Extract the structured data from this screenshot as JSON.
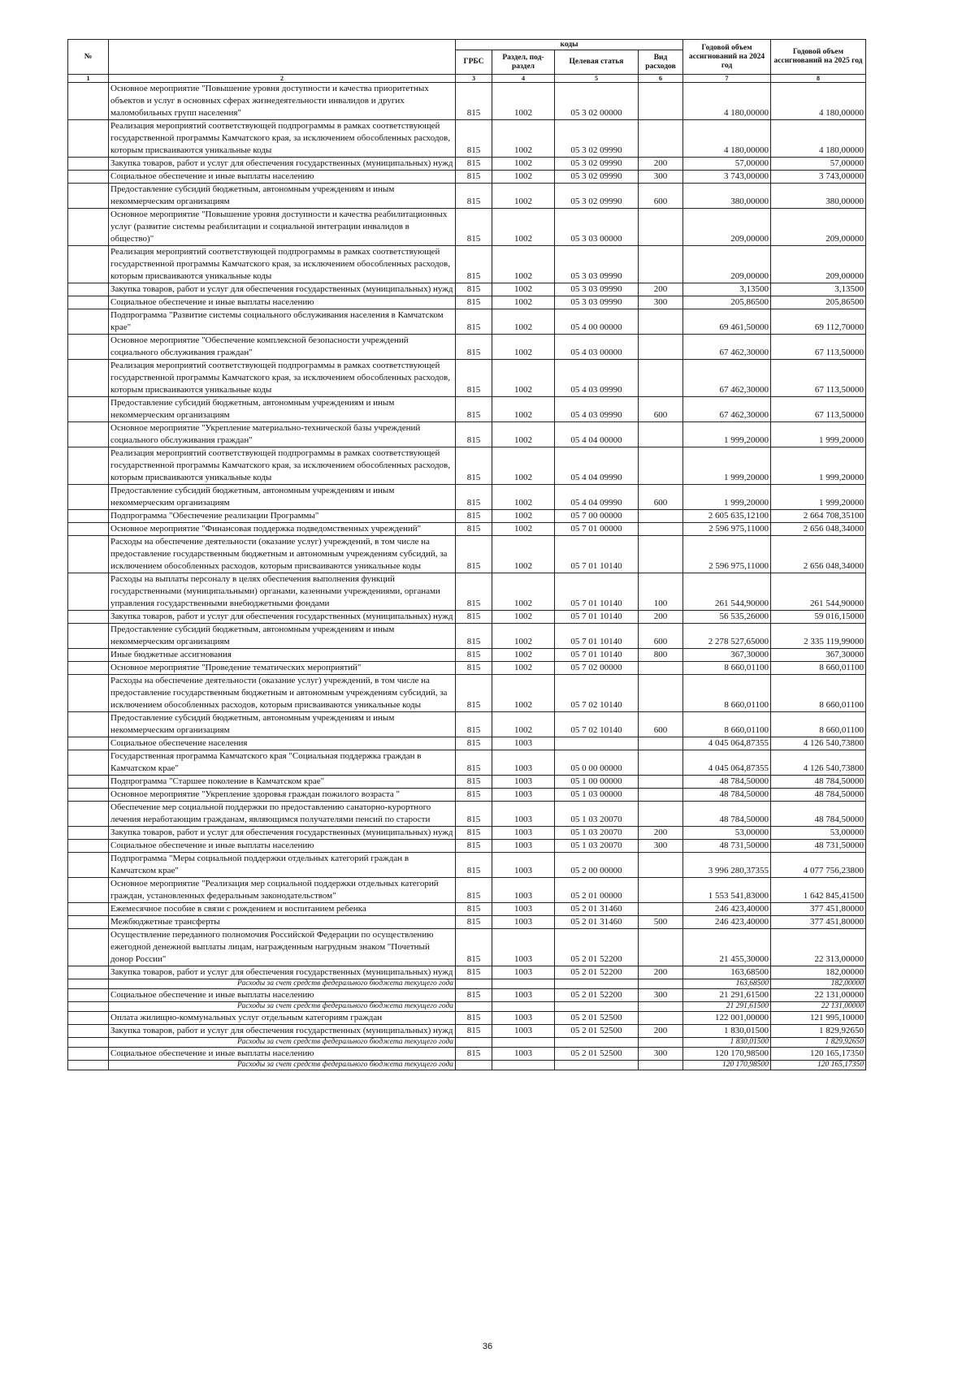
{
  "header": {
    "no": "№",
    "codes": "коды",
    "grbs": "ГРБС",
    "section": "Раздел, под-раздел",
    "target": "Целевая статья",
    "type": "Вид расходов",
    "y2024": "Годовой объем ассигнований на 2024 год",
    "y2025": "Годовой объем ассигнований на 2025 год",
    "numbers": [
      "1",
      "2",
      "3",
      "4",
      "5",
      "6",
      "7",
      "8"
    ]
  },
  "rows": [
    {
      "name": "Основное мероприятие \"Повышение уровня доступности и качества приоритетных объектов и услуг в основных сферах жизнедеятельности инвалидов и других маломобильных групп населения\"",
      "grbs": "815",
      "section": "1002",
      "target": "05 3 02 00000",
      "y2024": "4 180,00000",
      "y2025": "4 180,00000"
    },
    {
      "name": "Реализация мероприятий соответствующей подпрограммы в рамках соответствующей государственной программы Камчатского края, за исключением обособленных расходов, которым присваиваются уникальные коды",
      "grbs": "815",
      "section": "1002",
      "target": "05 3 02 09990",
      "y2024": "4 180,00000",
      "y2025": "4 180,00000"
    },
    {
      "name": "Закупка товаров, работ и услуг для обеспечения государственных (муниципальных) нужд",
      "grbs": "815",
      "section": "1002",
      "target": "05 3 02 09990",
      "type": "200",
      "y2024": "57,00000",
      "y2025": "57,00000"
    },
    {
      "name": "Социальное обеспечение и иные выплаты населению",
      "grbs": "815",
      "section": "1002",
      "target": "05 3 02 09990",
      "type": "300",
      "y2024": "3 743,00000",
      "y2025": "3 743,00000"
    },
    {
      "name": "Предоставление субсидий бюджетным, автономным учреждениям и иным некоммерческим организациям",
      "grbs": "815",
      "section": "1002",
      "target": "05 3 02 09990",
      "type": "600",
      "y2024": "380,00000",
      "y2025": "380,00000"
    },
    {
      "name": "Основное мероприятие \"Повышение уровня доступности и качества реабилитационных услуг (развитие системы реабилитации и социальной интеграции инвалидов в общество)\"",
      "grbs": "815",
      "section": "1002",
      "target": "05 3 03 00000",
      "y2024": "209,00000",
      "y2025": "209,00000"
    },
    {
      "name": "Реализация мероприятий соответствующей подпрограммы в рамках соответствующей государственной программы Камчатского края, за исключением обособленных расходов, которым присваиваются уникальные коды",
      "grbs": "815",
      "section": "1002",
      "target": "05 3 03 09990",
      "y2024": "209,00000",
      "y2025": "209,00000"
    },
    {
      "name": "Закупка товаров, работ и услуг для обеспечения государственных (муниципальных) нужд",
      "grbs": "815",
      "section": "1002",
      "target": "05 3 03 09990",
      "type": "200",
      "y2024": "3,13500",
      "y2025": "3,13500"
    },
    {
      "name": "Социальное обеспечение и иные выплаты населению",
      "grbs": "815",
      "section": "1002",
      "target": "05 3 03 09990",
      "type": "300",
      "y2024": "205,86500",
      "y2025": "205,86500"
    },
    {
      "name": "Подпрограмма \"Развитие системы социального обслуживания населения в Камчатском крае\"",
      "grbs": "815",
      "section": "1002",
      "target": "05 4 00 00000",
      "y2024": "69 461,50000",
      "y2025": "69 112,70000"
    },
    {
      "name": "Основное мероприятие \"Обеспечение комплексной безопасности учреждений социального обслуживания граждан\"",
      "grbs": "815",
      "section": "1002",
      "target": "05 4 03 00000",
      "y2024": "67 462,30000",
      "y2025": "67 113,50000"
    },
    {
      "name": "Реализация мероприятий соответствующей подпрограммы в рамках соответствующей государственной программы Камчатского края, за исключением обособленных расходов, которым присваиваются уникальные коды",
      "grbs": "815",
      "section": "1002",
      "target": "05 4 03 09990",
      "y2024": "67 462,30000",
      "y2025": "67 113,50000"
    },
    {
      "name": "Предоставление субсидий бюджетным, автономным учреждениям и иным некоммерческим организациям",
      "grbs": "815",
      "section": "1002",
      "target": "05 4 03 09990",
      "type": "600",
      "y2024": "67 462,30000",
      "y2025": "67 113,50000"
    },
    {
      "name": "Основное мероприятие \"Укрепление материально-технической базы учреждений социального обслуживания граждан\"",
      "grbs": "815",
      "section": "1002",
      "target": "05 4 04 00000",
      "y2024": "1 999,20000",
      "y2025": "1 999,20000"
    },
    {
      "name": "Реализация мероприятий соответствующей подпрограммы в рамках соответствующей государственной программы Камчатского края, за исключением обособленных расходов, которым присваиваются уникальные коды",
      "grbs": "815",
      "section": "1002",
      "target": "05 4 04 09990",
      "y2024": "1 999,20000",
      "y2025": "1 999,20000"
    },
    {
      "name": "Предоставление субсидий бюджетным, автономным учреждениям и иным некоммерческим организациям",
      "grbs": "815",
      "section": "1002",
      "target": "05 4 04 09990",
      "type": "600",
      "y2024": "1 999,20000",
      "y2025": "1 999,20000"
    },
    {
      "name": "Подпрограмма \"Обеспечение реализации Программы\"",
      "grbs": "815",
      "section": "1002",
      "target": "05 7 00 00000",
      "y2024": "2 605 635,12100",
      "y2025": "2 664 708,35100"
    },
    {
      "name": "Основное мероприятие \"Финансовая поддержка подведомственных учреждений\"",
      "grbs": "815",
      "section": "1002",
      "target": "05 7 01 00000",
      "y2024": "2 596 975,11000",
      "y2025": "2 656 048,34000"
    },
    {
      "name": "Расходы на обеспечение деятельности (оказание услуг) учреждений, в том числе на предоставление государственным бюджетным и автономным учреждениям субсидий, за исключением обособленных расходов, которым присваиваются уникальные коды",
      "grbs": "815",
      "section": "1002",
      "target": "05 7 01 10140",
      "y2024": "2 596 975,11000",
      "y2025": "2 656 048,34000"
    },
    {
      "name": "Расходы на выплаты персоналу в целях обеспечения выполнения функций государственными (муниципальными) органами, казенными учреждениями, органами управления государственными внебюджетными фондами",
      "grbs": "815",
      "section": "1002",
      "target": "05 7 01 10140",
      "type": "100",
      "y2024": "261 544,90000",
      "y2025": "261 544,90000"
    },
    {
      "name": "Закупка товаров, работ и услуг для обеспечения государственных (муниципальных) нужд",
      "grbs": "815",
      "section": "1002",
      "target": "05 7 01 10140",
      "type": "200",
      "y2024": "56 535,26000",
      "y2025": "59 016,15000"
    },
    {
      "name": "Предоставление субсидий бюджетным, автономным учреждениям и иным некоммерческим организациям",
      "grbs": "815",
      "section": "1002",
      "target": "05 7 01 10140",
      "type": "600",
      "y2024": "2 278 527,65000",
      "y2025": "2 335 119,99000"
    },
    {
      "name": "Иные бюджетные ассигнования",
      "grbs": "815",
      "section": "1002",
      "target": "05 7 01 10140",
      "type": "800",
      "y2024": "367,30000",
      "y2025": "367,30000"
    },
    {
      "name": "Основное мероприятие \"Проведение тематических мероприятий\"",
      "grbs": "815",
      "section": "1002",
      "target": "05 7 02 00000",
      "y2024": "8 660,01100",
      "y2025": "8 660,01100"
    },
    {
      "name": "Расходы на обеспечение деятельности (оказание услуг) учреждений, в том числе на предоставление государственным бюджетным и автономным учреждениям субсидий, за исключением обособленных расходов, которым присваиваются уникальные коды",
      "grbs": "815",
      "section": "1002",
      "target": "05 7 02 10140",
      "y2024": "8 660,01100",
      "y2025": "8 660,01100"
    },
    {
      "name": "Предоставление субсидий бюджетным, автономным учреждениям и иным некоммерческим организациям",
      "grbs": "815",
      "section": "1002",
      "target": "05 7 02 10140",
      "type": "600",
      "y2024": "8 660,01100",
      "y2025": "8 660,01100"
    },
    {
      "name": "Социальное обеспечение населения",
      "grbs": "815",
      "section": "1003",
      "y2024": "4 045 064,87355",
      "y2025": "4 126 540,73800"
    },
    {
      "name": "Государственная программа Камчатского края \"Социальная поддержка граждан в Камчатском крае\"",
      "grbs": "815",
      "section": "1003",
      "target": "05 0 00 00000",
      "y2024": "4 045 064,87355",
      "y2025": "4 126 540,73800"
    },
    {
      "name": "Подпрограмма \"Старшее поколение в Камчатском крае\"",
      "grbs": "815",
      "section": "1003",
      "target": "05 1 00 00000",
      "y2024": "48 784,50000",
      "y2025": "48 784,50000"
    },
    {
      "name": "Основное мероприятие \"Укрепление здоровья граждан пожилого возраста \"",
      "grbs": "815",
      "section": "1003",
      "target": "05 1 03 00000",
      "y2024": "48 784,50000",
      "y2025": "48 784,50000"
    },
    {
      "name": "Обеспечение мер социальной поддержки по предоставлению санаторно-курортного лечения неработающим гражданам, являющимся получателями пенсий по старости",
      "grbs": "815",
      "section": "1003",
      "target": "05 1 03 20070",
      "y2024": "48 784,50000",
      "y2025": "48 784,50000"
    },
    {
      "name": "Закупка товаров, работ и услуг для обеспечения государственных (муниципальных) нужд",
      "grbs": "815",
      "section": "1003",
      "target": "05 1 03 20070",
      "type": "200",
      "y2024": "53,00000",
      "y2025": "53,00000"
    },
    {
      "name": "Социальное обеспечение и иные выплаты населению",
      "grbs": "815",
      "section": "1003",
      "target": "05 1 03 20070",
      "type": "300",
      "y2024": "48 731,50000",
      "y2025": "48 731,50000"
    },
    {
      "name": "Подпрограмма \"Меры социальной поддержки отдельных категорий граждан в Камчатском крае\"",
      "grbs": "815",
      "section": "1003",
      "target": "05 2 00 00000",
      "y2024": "3 996 280,37355",
      "y2025": "4 077 756,23800"
    },
    {
      "name": "Основное мероприятие \"Реализация мер социальной поддержки отдельных категорий граждан, установленных федеральным законодательством\"",
      "grbs": "815",
      "section": "1003",
      "target": "05 2 01 00000",
      "y2024": "1 553 541,83000",
      "y2025": "1 642 845,41500"
    },
    {
      "name": "Ежемесячное пособие в связи с рождением и воспитанием ребенка",
      "grbs": "815",
      "section": "1003",
      "target": "05 2 01 31460",
      "y2024": "246 423,40000",
      "y2025": "377 451,80000"
    },
    {
      "name": "Межбюджетные трансферты",
      "grbs": "815",
      "section": "1003",
      "target": "05 2 01 31460",
      "type": "500",
      "y2024": "246 423,40000",
      "y2025": "377 451,80000"
    },
    {
      "name": "Осуществление переданного полномочия Российской Федерации по осуществлению ежегодной денежной выплаты лицам, награжденным нагрудным знаком \"Почетный донор России\"",
      "grbs": "815",
      "section": "1003",
      "target": "05 2 01 52200",
      "y2024": "21 455,30000",
      "y2025": "22 313,00000"
    },
    {
      "name": "Закупка товаров, работ и услуг для обеспечения государственных (муниципальных) нужд",
      "grbs": "815",
      "section": "1003",
      "target": "05 2 01 52200",
      "type": "200",
      "y2024": "163,68500",
      "y2025": "182,00000"
    },
    {
      "note": "Расходы за счет средств федерального бюджета текущего года",
      "y2024": "163,68500",
      "y2025": "182,00000"
    },
    {
      "name": "Социальное обеспечение и иные выплаты населению",
      "grbs": "815",
      "section": "1003",
      "target": "05 2 01 52200",
      "type": "300",
      "y2024": "21 291,61500",
      "y2025": "22 131,00000"
    },
    {
      "note": "Расходы за счет средств федерального бюджета текущего года",
      "y2024": "21 291,61500",
      "y2025": "22 131,00000"
    },
    {
      "name": "Оплата жилищно-коммунальных услуг отдельным категориям граждан",
      "grbs": "815",
      "section": "1003",
      "target": "05 2 01 52500",
      "y2024": "122 001,00000",
      "y2025": "121 995,10000"
    },
    {
      "name": "Закупка товаров, работ и услуг для обеспечения государственных (муниципальных) нужд",
      "grbs": "815",
      "section": "1003",
      "target": "05 2 01 52500",
      "type": "200",
      "y2024": "1 830,01500",
      "y2025": "1 829,92650"
    },
    {
      "note": "Расходы за счет средств федерального бюджета текущего года",
      "y2024": "1 830,01500",
      "y2025": "1 829,92650"
    },
    {
      "name": "Социальное обеспечение и иные выплаты населению",
      "grbs": "815",
      "section": "1003",
      "target": "05 2 01 52500",
      "type": "300",
      "y2024": "120 170,98500",
      "y2025": "120 165,17350"
    },
    {
      "note": "Расходы за счет средств федерального бюджета текущего года",
      "y2024": "120 170,98500",
      "y2025": "120 165,17350"
    }
  ],
  "page_number": "36"
}
